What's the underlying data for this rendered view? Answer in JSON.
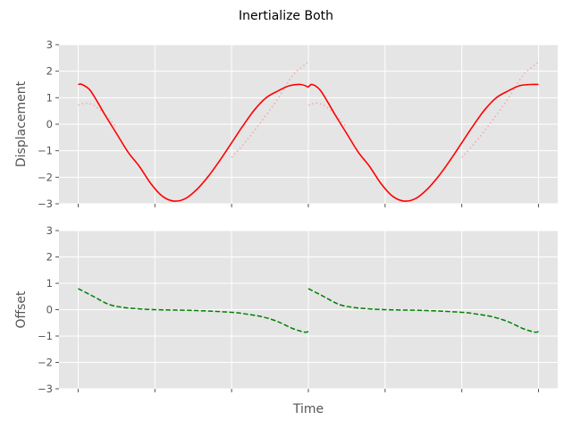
{
  "chart_data": {
    "title": "Inertialize Both",
    "xlabel": "Time",
    "xlim": [
      -0.25,
      6.25
    ],
    "x_ticks": [
      0,
      1,
      2,
      3,
      4,
      5,
      6
    ],
    "x_tick_labels": [
      "",
      "",
      "",
      "",
      "",
      "",
      ""
    ],
    "grid": true,
    "background": "#e5e5e5",
    "panels": [
      {
        "type": "line",
        "ylabel": "Displacement",
        "ylim": [
          -3,
          3
        ],
        "y_ticks": [
          -3,
          -2,
          -1,
          0,
          1,
          2,
          3
        ],
        "y_tick_labels": [
          "−3",
          "−2",
          "−1",
          "0",
          "1",
          "2",
          "3"
        ],
        "series": [
          {
            "style": "dotted",
            "color": "#f4a6a6",
            "segments": [
              {
                "x": [
                  0,
                  0.1,
                  0.2,
                  0.3,
                  0.4,
                  0.5
                ],
                "y": [
                  0.72,
                  0.8,
                  0.72,
                  0.5,
                  0.22,
                  -0.12
                ]
              },
              {
                "x": [
                  3.0,
                  3.1,
                  3.2,
                  3.3,
                  3.4,
                  3.5
                ],
                "y": [
                  0.72,
                  0.8,
                  0.72,
                  0.5,
                  0.22,
                  -0.12
                ]
              },
              {
                "x": [
                  2.0,
                  2.2,
                  2.4,
                  2.6,
                  2.8,
                  3.0
                ],
                "y": [
                  -1.25,
                  -0.6,
                  0.15,
                  0.95,
                  1.85,
                  2.35
                ]
              },
              {
                "x": [
                  5.0,
                  5.2,
                  5.4,
                  5.6,
                  5.8,
                  6.0
                ],
                "y": [
                  -1.25,
                  -0.6,
                  0.15,
                  0.95,
                  1.85,
                  2.35
                ]
              }
            ]
          },
          {
            "style": "solid",
            "color": "#ff0000",
            "segments": [
              {
                "x": [
                  0,
                  0.05,
                  0.15,
                  0.25,
                  0.35,
                  0.5,
                  0.65,
                  0.8,
                  0.95,
                  1.1,
                  1.25,
                  1.4,
                  1.55,
                  1.7,
                  1.85,
                  2.0,
                  2.15,
                  2.3,
                  2.45,
                  2.6,
                  2.75,
                  2.9,
                  3.0
                ],
                "y": [
                  1.5,
                  1.5,
                  1.3,
                  0.85,
                  0.35,
                  -0.35,
                  -1.05,
                  -1.6,
                  -2.25,
                  -2.72,
                  -2.9,
                  -2.8,
                  -2.45,
                  -1.95,
                  -1.35,
                  -0.7,
                  -0.05,
                  0.55,
                  1.0,
                  1.25,
                  1.45,
                  1.5,
                  1.4
                ]
              },
              {
                "x": [
                  3.0,
                  3.05,
                  3.15,
                  3.25,
                  3.35,
                  3.5,
                  3.65,
                  3.8,
                  3.95,
                  4.1,
                  4.25,
                  4.4,
                  4.55,
                  4.7,
                  4.85,
                  5.0,
                  5.15,
                  5.3,
                  5.45,
                  5.6,
                  5.75,
                  5.9,
                  6.0
                ],
                "y": [
                  1.4,
                  1.5,
                  1.3,
                  0.85,
                  0.35,
                  -0.35,
                  -1.05,
                  -1.6,
                  -2.25,
                  -2.72,
                  -2.9,
                  -2.8,
                  -2.45,
                  -1.95,
                  -1.35,
                  -0.7,
                  -0.05,
                  0.55,
                  1.0,
                  1.25,
                  1.45,
                  1.5,
                  1.5
                ]
              }
            ]
          }
        ]
      },
      {
        "type": "line",
        "ylabel": "Offset",
        "ylim": [
          -3,
          3
        ],
        "y_ticks": [
          -3,
          -2,
          -1,
          0,
          1,
          2,
          3
        ],
        "y_tick_labels": [
          "−3",
          "−2",
          "−1",
          "0",
          "1",
          "2",
          "3"
        ],
        "series": [
          {
            "style": "dashed",
            "color": "#008000",
            "segments": [
              {
                "x": [
                  0,
                  0.2,
                  0.4,
                  0.6,
                  0.8,
                  1.0,
                  1.5,
                  2.0,
                  2.2,
                  2.4,
                  2.6,
                  2.8,
                  2.95,
                  3.0
                ],
                "y": [
                  0.8,
                  0.5,
                  0.2,
                  0.08,
                  0.03,
                  0.0,
                  -0.03,
                  -0.1,
                  -0.17,
                  -0.27,
                  -0.45,
                  -0.72,
                  -0.85,
                  -0.83
                ]
              },
              {
                "x": [
                  3.0,
                  3.2,
                  3.4,
                  3.6,
                  3.8,
                  4.0,
                  4.5,
                  5.0,
                  5.2,
                  5.4,
                  5.6,
                  5.8,
                  5.95,
                  6.0
                ],
                "y": [
                  0.8,
                  0.5,
                  0.2,
                  0.08,
                  0.03,
                  0.0,
                  -0.03,
                  -0.1,
                  -0.17,
                  -0.27,
                  -0.45,
                  -0.72,
                  -0.85,
                  -0.83
                ]
              }
            ]
          }
        ]
      }
    ]
  }
}
